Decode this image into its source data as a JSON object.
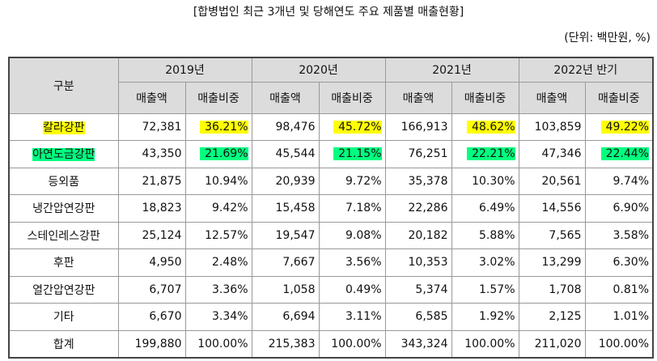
{
  "header": {
    "title": "[합병법인 최근 3개년 및 당해연도 주요 제품별 매출현황]",
    "unit": "(단위: 백만원, %)"
  },
  "table": {
    "corner": "구분",
    "periods": [
      "2019년",
      "2020년",
      "2021년",
      "2022년 반기"
    ],
    "subcolumns": [
      "매출액",
      "매출비중"
    ],
    "rows": [
      {
        "label": "칼라강판",
        "highlight": "yellow",
        "cells": [
          "72,381",
          "36.21%",
          "98,476",
          "45.72%",
          "166,913",
          "48.62%",
          "103,859",
          "49.22%"
        ]
      },
      {
        "label": "아연도금강판",
        "highlight": "green",
        "cells": [
          "43,350",
          "21.69%",
          "45,544",
          "21.15%",
          "76,251",
          "22.21%",
          "47,346",
          "22.44%"
        ]
      },
      {
        "label": "등외품",
        "cells": [
          "21,875",
          "10.94%",
          "20,939",
          "9.72%",
          "35,378",
          "10.30%",
          "20,561",
          "9.74%"
        ]
      },
      {
        "label": "냉간압연강판",
        "cells": [
          "18,823",
          "9.42%",
          "15,458",
          "7.18%",
          "22,286",
          "6.49%",
          "14,556",
          "6.90%"
        ]
      },
      {
        "label": "스테인레스강판",
        "cells": [
          "25,124",
          "12.57%",
          "19,547",
          "9.08%",
          "20,182",
          "5.88%",
          "7,565",
          "3.58%"
        ]
      },
      {
        "label": "후판",
        "cells": [
          "4,950",
          "2.48%",
          "7,667",
          "3.56%",
          "10,353",
          "3.02%",
          "13,299",
          "6.30%"
        ]
      },
      {
        "label": "열간압연강판",
        "cells": [
          "6,707",
          "3.36%",
          "1,058",
          "0.49%",
          "5,374",
          "1.57%",
          "1,708",
          "0.81%"
        ]
      },
      {
        "label": "기타",
        "cells": [
          "6,670",
          "3.34%",
          "6,694",
          "3.11%",
          "6,585",
          "1.92%",
          "2,125",
          "1.01%"
        ]
      },
      {
        "label": "합계",
        "cells": [
          "199,880",
          "100.00%",
          "215,383",
          "100.00%",
          "343,324",
          "100.00%",
          "211,020",
          "100.00%"
        ]
      }
    ]
  }
}
